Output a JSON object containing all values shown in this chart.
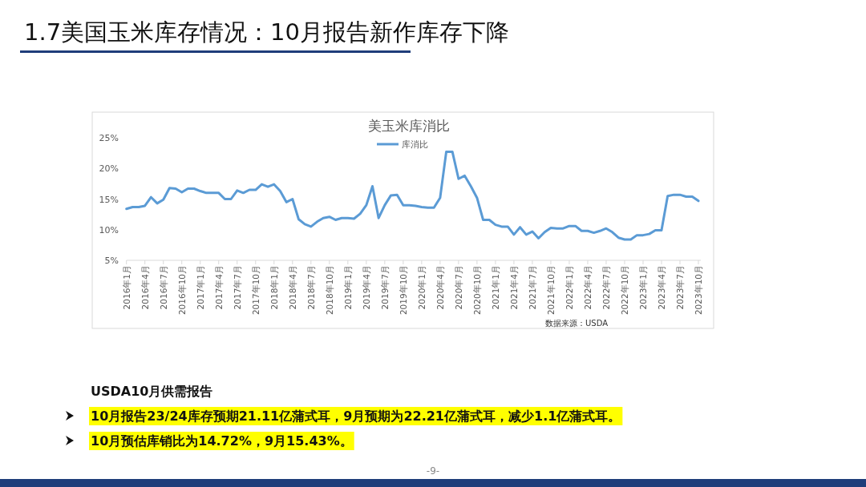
{
  "chart_data": {
    "type": "line",
    "title": "美玉米库消比",
    "categories": [
      "2016年1月",
      null,
      null,
      "2016年4月",
      null,
      null,
      "2016年7月",
      null,
      null,
      "2016年10月",
      null,
      null,
      "2017年1月",
      null,
      null,
      "2017年4月",
      null,
      null,
      "2017年7月",
      null,
      null,
      "2017年10月",
      null,
      null,
      "2018年1月",
      null,
      null,
      "2018年4月",
      null,
      null,
      "2018年7月",
      null,
      null,
      "2018年10月",
      null,
      null,
      "2019年1月",
      null,
      null,
      "2019年4月",
      null,
      null,
      "2019年7月",
      null,
      null,
      "2019年10月",
      null,
      null,
      "2020年1月",
      null,
      null,
      "2020年4月",
      null,
      null,
      "2020年7月",
      null,
      null,
      "2020年10月",
      null,
      null,
      "2021年1月",
      null,
      null,
      "2021年4月",
      null,
      null,
      "2021年7月",
      null,
      null,
      "2021年10月",
      null,
      null,
      "2022年1月",
      null,
      null,
      "2022年4月",
      null,
      null,
      "2022年7月",
      null,
      null,
      "2022年10月",
      null,
      null,
      "2023年1月",
      null,
      null,
      "2023年4月",
      null,
      null,
      "2023年7月",
      null,
      null,
      "2023年10月"
    ],
    "series": [
      {
        "name": "库消比",
        "color": "#5b9bd5",
        "values": [
          13.4,
          13.7,
          13.7,
          13.9,
          15.3,
          14.3,
          14.9,
          16.8,
          16.7,
          16.1,
          16.7,
          16.7,
          16.3,
          16.0,
          16.0,
          16.0,
          15.0,
          15.0,
          16.4,
          16.0,
          16.5,
          16.5,
          17.4,
          17.0,
          17.4,
          16.3,
          14.5,
          15.0,
          11.7,
          10.9,
          10.5,
          11.3,
          11.9,
          12.1,
          11.6,
          11.9,
          11.9,
          11.8,
          12.6,
          14.0,
          17.1,
          11.9,
          14.0,
          15.6,
          15.7,
          14.0,
          14.0,
          13.9,
          13.7,
          13.6,
          13.6,
          15.2,
          22.7,
          22.7,
          18.3,
          18.8,
          17.1,
          15.2,
          11.6,
          11.6,
          10.8,
          10.5,
          10.5,
          9.2,
          10.4,
          9.2,
          9.7,
          8.6,
          9.6,
          10.3,
          10.2,
          10.2,
          10.6,
          10.6,
          9.8,
          9.8,
          9.5,
          9.8,
          10.2,
          9.6,
          8.7,
          8.4,
          8.4,
          9.1,
          9.1,
          9.3,
          9.9,
          9.9,
          15.5,
          15.7,
          15.7,
          15.4,
          15.4,
          14.7
        ]
      }
    ],
    "ylim": [
      5,
      25
    ],
    "yticks": [
      {
        "value": 5,
        "label": "5%"
      },
      {
        "value": 10,
        "label": "10%"
      },
      {
        "value": 15,
        "label": "15%"
      },
      {
        "value": 20,
        "label": "20%"
      },
      {
        "value": 25,
        "label": "25%"
      }
    ],
    "legend": "top",
    "annotations": [
      "1.7美国玉米库存情况：10月报告新作库存下降",
      "数据来源：USDA",
      "USDA10月供需报告",
      "10月报告23/24库存预期21.11亿蒲式耳，9月预期为22.21亿蒲式耳，减少1.1亿蒲式耳。",
      "10月预估库销比为14.72%，9月15.43%。",
      "-9-"
    ]
  }
}
